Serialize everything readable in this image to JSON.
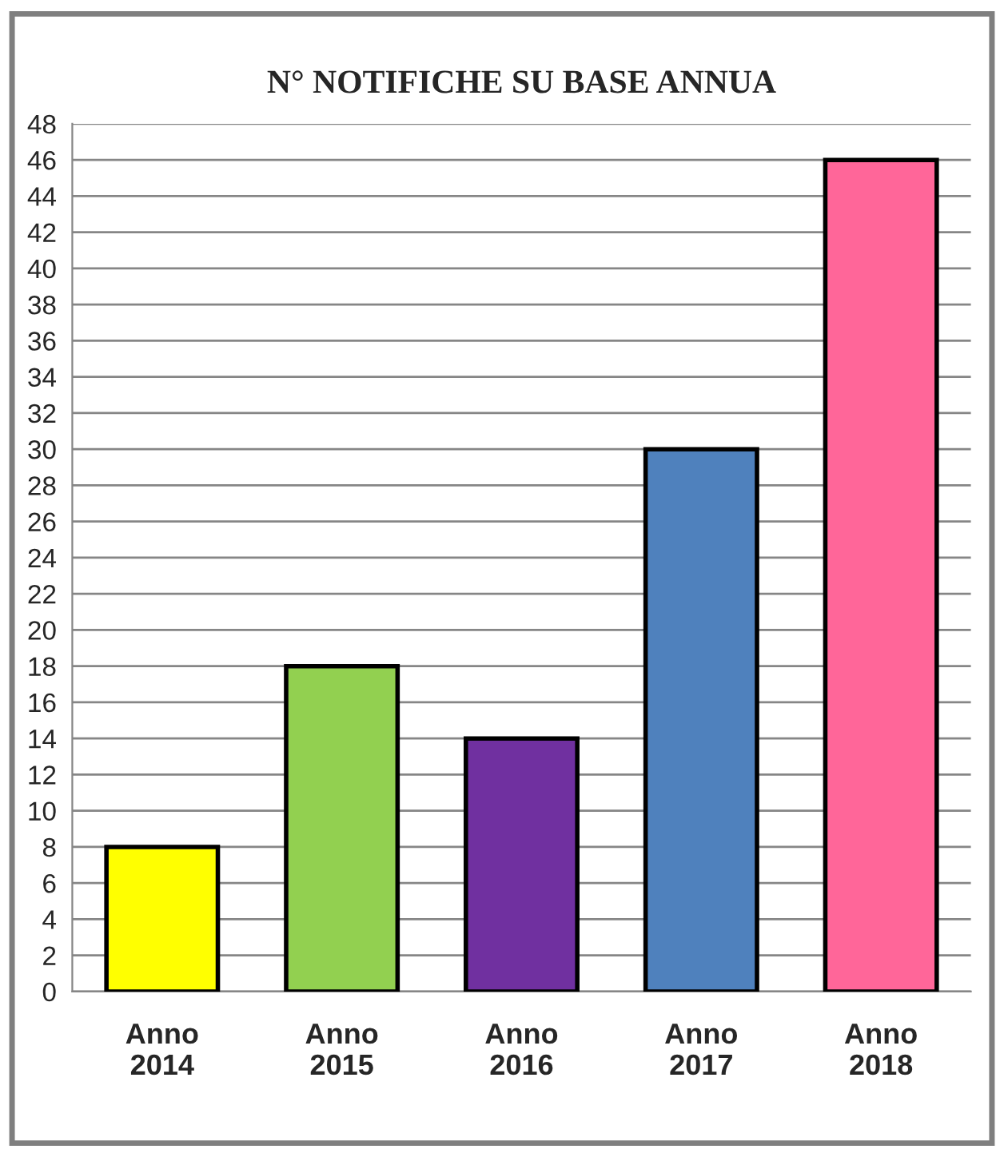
{
  "chart_data": {
    "type": "bar",
    "title": "N° NOTIFICHE SU BASE ANNUA",
    "categories": [
      "Anno\n2014",
      "Anno\n2015",
      "Anno\n2016",
      "Anno\n2017",
      "Anno\n2018"
    ],
    "values": [
      8,
      18,
      14,
      30,
      46
    ],
    "colors": [
      "#ffff00",
      "#92d050",
      "#7030a0",
      "#4f81bd",
      "#ff6699"
    ],
    "ylim": [
      0,
      48
    ],
    "yticks": [
      0,
      2,
      4,
      6,
      8,
      10,
      12,
      14,
      16,
      18,
      20,
      22,
      24,
      26,
      28,
      30,
      32,
      34,
      36,
      38,
      40,
      42,
      44,
      46,
      48
    ],
    "grid": "y",
    "legend": false
  }
}
